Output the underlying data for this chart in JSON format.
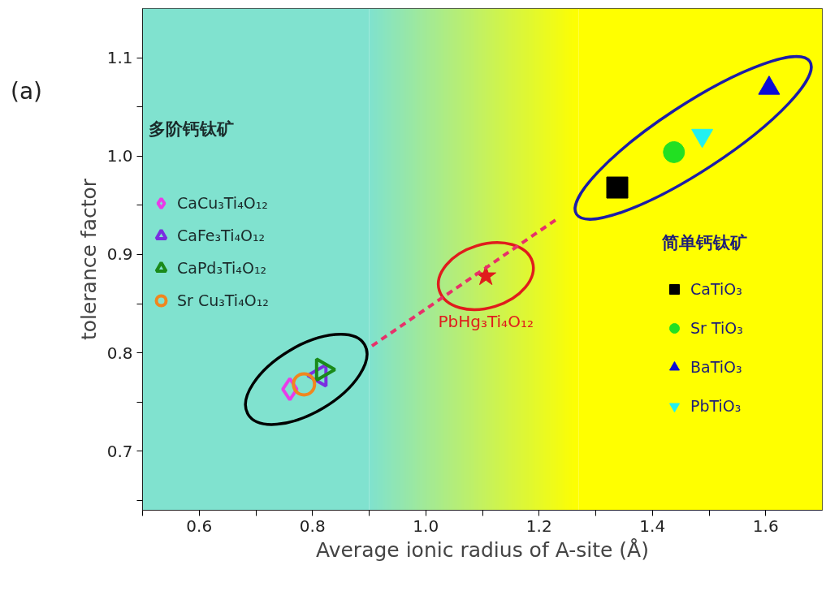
{
  "chart_data": {
    "type": "scatter",
    "xlabel": "Average ionic radius of A-site (Å)",
    "ylabel": "tolerance factor",
    "annotations": [
      "(a)",
      "多阶钙钛矿",
      "简单钙钛矿"
    ],
    "xlim": [
      0.5,
      1.7
    ],
    "ylim": [
      0.64,
      1.15
    ],
    "xticks": [
      {
        "value": 0.5,
        "label": null
      },
      0.6,
      {
        "value": 0.7,
        "label": null
      },
      0.8,
      {
        "value": 0.9,
        "label": null
      },
      {
        "value": 1.0,
        "label": "1.0"
      },
      {
        "value": 1.1,
        "label": null
      },
      1.2,
      {
        "value": 1.3,
        "label": null
      },
      1.4,
      {
        "value": 1.5,
        "label": null
      },
      1.6
    ],
    "yticks": [
      {
        "value": 0.65,
        "label": null
      },
      0.7,
      {
        "value": 0.75,
        "label": null
      },
      0.8,
      {
        "value": 0.85,
        "label": null
      },
      0.9,
      {
        "value": 0.95,
        "label": null
      },
      {
        "value": 1.0,
        "label": "1.0"
      },
      {
        "value": 1.05,
        "label": null
      },
      1.1
    ],
    "legend": "left",
    "bands": [
      {
        "axis": "x",
        "from": 0.5,
        "to": 0.9,
        "label": null,
        "color": "#80e2cf"
      },
      {
        "axis": "x",
        "from": 0.9,
        "to": 1.27,
        "label": null
      },
      {
        "axis": "x",
        "from": 1.27,
        "to": 1.7,
        "label": null,
        "color": "#ffff00"
      }
    ],
    "series": [
      {
        "name": "CaCu₃Ti₄O₁₂",
        "color": "#e83ce8",
        "marker": "diamond",
        "x": [
          0.76
        ],
        "values": [
          0.763
        ]
      },
      {
        "name": "CaFe₃Ti₄O₁₂",
        "color": "#7a2ee0",
        "marker": "triangle_left",
        "x": [
          0.813
        ],
        "values": [
          0.777
        ]
      },
      {
        "name": "CaPd₃Ti₄O₁₂",
        "color": "#1a8a1a",
        "marker": "triangle_right",
        "x": [
          0.818
        ],
        "values": [
          0.783
        ]
      },
      {
        "name": "Sr Cu₃Ti₄O₁₂",
        "color": "#f0861e",
        "marker": "circle",
        "x": [
          0.785
        ],
        "values": [
          0.768
        ]
      },
      {
        "name": "PbHg₃Ti₄O₁₂",
        "color": "#e01c1c",
        "marker": "star",
        "x": [
          1.106
        ],
        "values": [
          0.878
        ]
      },
      {
        "name": "CaTiO₃",
        "color": "#000000",
        "marker": "square",
        "x": [
          1.338
        ],
        "values": [
          0.968
        ]
      },
      {
        "name": "Sr TiO₃",
        "color": "#22e022",
        "marker": "circle",
        "x": [
          1.438
        ],
        "values": [
          1.004
        ]
      },
      {
        "name": "BaTiO₃",
        "color": "#0a0ad8",
        "marker": "triangle",
        "x": [
          1.606
        ],
        "values": [
          1.069
        ]
      },
      {
        "name": "PbTiO₃",
        "color": "#22f0f0",
        "marker": "triangle_down",
        "x": [
          1.488
        ],
        "values": [
          1.021
        ]
      },
      {
        "type": "line",
        "color": "#e8306a",
        "line_style": "dashed",
        "x": [
          0.905,
          1.234
        ],
        "values": [
          0.807,
          0.937
        ]
      }
    ]
  }
}
